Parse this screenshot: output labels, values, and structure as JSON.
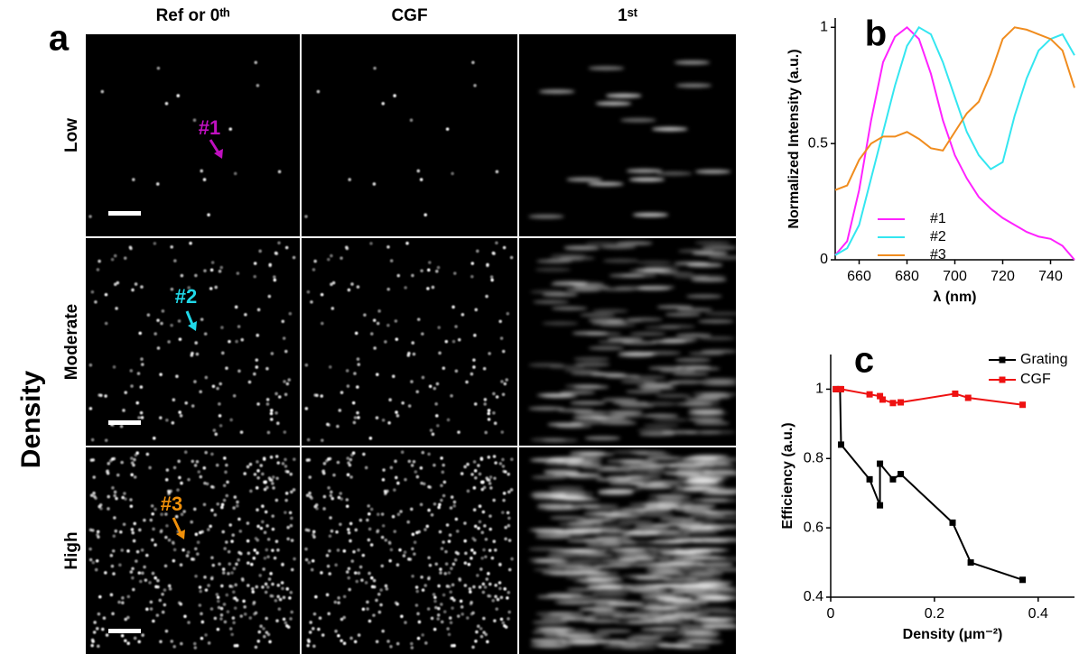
{
  "panel_a": {
    "label": "a",
    "columns": [
      "Ref or 0ᵗʰ",
      "CGF",
      "1ˢᵗ"
    ],
    "rows": [
      "Low",
      "Moderate",
      "High"
    ],
    "row_axis": "Density",
    "markers": [
      {
        "label": "#1",
        "color": "#c010c0"
      },
      {
        "label": "#2",
        "color": "#20d8e8"
      },
      {
        "label": "#3",
        "color": "#f0900a"
      }
    ]
  },
  "chart_data": [
    {
      "type": "line",
      "label": "b",
      "xlabel": "λ (nm)",
      "ylabel": "Normalized Intensity (a.u.)",
      "x": [
        650,
        655,
        660,
        665,
        670,
        675,
        680,
        685,
        690,
        695,
        700,
        705,
        710,
        715,
        720,
        725,
        730,
        735,
        740,
        745,
        750
      ],
      "xlim": [
        650,
        750
      ],
      "xticks": [
        660,
        680,
        700,
        720,
        740
      ],
      "ylim": [
        0,
        1.04
      ],
      "yticks": [
        0,
        0.5,
        1
      ],
      "legend": "lower left",
      "series": [
        {
          "name": "#1",
          "color": "#ff22ff",
          "values": [
            0.02,
            0.08,
            0.3,
            0.6,
            0.85,
            0.96,
            1.0,
            0.95,
            0.8,
            0.6,
            0.45,
            0.35,
            0.27,
            0.22,
            0.18,
            0.15,
            0.12,
            0.1,
            0.09,
            0.06,
            0.0
          ]
        },
        {
          "name": "#2",
          "color": "#33e6f0",
          "values": [
            0.02,
            0.05,
            0.15,
            0.35,
            0.55,
            0.75,
            0.92,
            1.0,
            0.97,
            0.85,
            0.7,
            0.55,
            0.45,
            0.39,
            0.42,
            0.62,
            0.78,
            0.9,
            0.95,
            0.97,
            0.88
          ]
        },
        {
          "name": "#3",
          "color": "#f08c1e",
          "values": [
            0.3,
            0.32,
            0.43,
            0.5,
            0.53,
            0.53,
            0.55,
            0.52,
            0.48,
            0.47,
            0.55,
            0.63,
            0.68,
            0.8,
            0.95,
            1.0,
            0.99,
            0.97,
            0.95,
            0.9,
            0.74
          ]
        }
      ]
    },
    {
      "type": "line",
      "label": "c",
      "xlabel": "Density (μm⁻²)",
      "ylabel": "Efficiency (a.u.)",
      "xlim": [
        0,
        0.47
      ],
      "xticks": [
        0,
        0.2,
        0.4
      ],
      "ylim": [
        0.4,
        1.1
      ],
      "yticks": [
        0.4,
        0.6,
        0.8,
        1
      ],
      "legend": "upper right",
      "series": [
        {
          "name": "Grating",
          "color": "#000000",
          "x": [
            0.01,
            0.018,
            0.02,
            0.075,
            0.095,
            0.095,
            0.12,
            0.135,
            0.235,
            0.27,
            0.37
          ],
          "values": [
            1.0,
            1.0,
            0.84,
            0.74,
            0.665,
            0.785,
            0.74,
            0.755,
            0.615,
            0.5,
            0.45
          ]
        },
        {
          "name": "CGF",
          "color": "#ee1111",
          "x": [
            0.01,
            0.02,
            0.075,
            0.095,
            0.1,
            0.12,
            0.135,
            0.24,
            0.265,
            0.37
          ],
          "values": [
            1.0,
            1.0,
            0.985,
            0.98,
            0.97,
            0.96,
            0.962,
            0.987,
            0.975,
            0.955
          ]
        }
      ]
    }
  ]
}
